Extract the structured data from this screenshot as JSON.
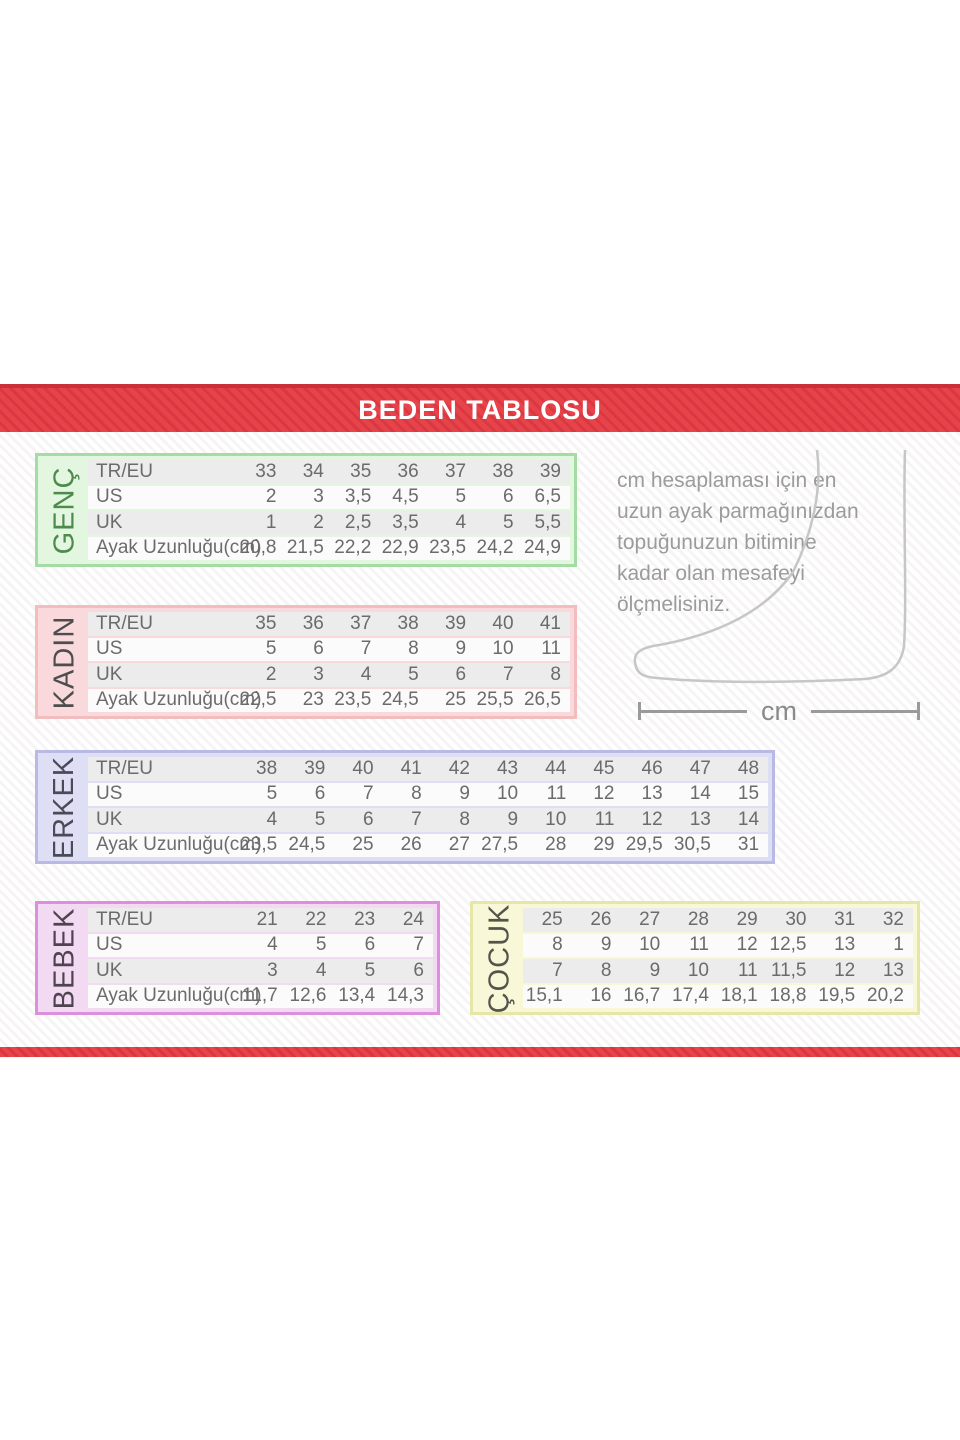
{
  "banner": {
    "title": "BEDEN TABLOSU"
  },
  "colors": {
    "banner_red": "#e8434b",
    "banner_dark_red": "#c93139"
  },
  "row_labels": [
    "TR/EU",
    "US",
    "UK",
    "Ayak Uzunluğu(cm)"
  ],
  "tables": [
    {
      "key": "genc",
      "label": "GENÇ",
      "show_row_labels": true,
      "colors": {
        "border": "#a5dba5",
        "fill": "#e3f6df",
        "label": "#4d8b4d"
      },
      "rows": [
        [
          "33",
          "34",
          "35",
          "36",
          "37",
          "38",
          "39"
        ],
        [
          "2",
          "3",
          "3,5",
          "4,5",
          "5",
          "6",
          "6,5"
        ],
        [
          "1",
          "2",
          "2,5",
          "3,5",
          "4",
          "5",
          "5,5"
        ],
        [
          "20,8",
          "21,5",
          "22,2",
          "22,9",
          "23,5",
          "24,2",
          "24,9"
        ]
      ]
    },
    {
      "key": "kadin",
      "label": "KADIN",
      "show_row_labels": true,
      "colors": {
        "border": "#f2bdbf",
        "fill": "#f9d9db",
        "label": "#4d4d4d"
      },
      "rows": [
        [
          "35",
          "36",
          "37",
          "38",
          "39",
          "40",
          "41"
        ],
        [
          "5",
          "6",
          "7",
          "8",
          "9",
          "10",
          "11"
        ],
        [
          "2",
          "3",
          "4",
          "5",
          "6",
          "7",
          "8"
        ],
        [
          "22,5",
          "23",
          "23,5",
          "24,5",
          "25",
          "25,5",
          "26,5"
        ]
      ]
    },
    {
      "key": "erkek",
      "label": "ERKEK",
      "show_row_labels": true,
      "colors": {
        "border": "#b9b9e6",
        "fill": "#dedef4",
        "label": "#4b4b57"
      },
      "rows": [
        [
          "38",
          "39",
          "40",
          "41",
          "42",
          "43",
          "44",
          "45",
          "46",
          "47",
          "48"
        ],
        [
          "5",
          "6",
          "7",
          "8",
          "9",
          "10",
          "11",
          "12",
          "13",
          "14",
          "15"
        ],
        [
          "4",
          "5",
          "6",
          "7",
          "8",
          "9",
          "10",
          "11",
          "12",
          "13",
          "14"
        ],
        [
          "23,5",
          "24,5",
          "25",
          "26",
          "27",
          "27,5",
          "28",
          "29",
          "29,5",
          "30,5",
          "31"
        ]
      ]
    },
    {
      "key": "bebek",
      "label": "BEBEK",
      "show_row_labels": true,
      "colors": {
        "border": "#dd8fdd",
        "fill": "#f3daf3",
        "label": "#4d444f"
      },
      "rows": [
        [
          "21",
          "22",
          "23",
          "24"
        ],
        [
          "4",
          "5",
          "6",
          "7"
        ],
        [
          "3",
          "4",
          "5",
          "6"
        ],
        [
          "11,7",
          "12,6",
          "13,4",
          "14,3"
        ]
      ]
    },
    {
      "key": "cocuk",
      "label": "ÇOCUK",
      "show_row_labels": false,
      "colors": {
        "border": "#e6e6a9",
        "fill": "#f8f8d8",
        "label": "#54544a"
      },
      "rows": [
        [
          "25",
          "26",
          "27",
          "28",
          "29",
          "30",
          "31",
          "32"
        ],
        [
          "8",
          "9",
          "10",
          "11",
          "12",
          "12,5",
          "13",
          "1"
        ],
        [
          "7",
          "8",
          "9",
          "10",
          "11",
          "11,5",
          "12",
          "13"
        ],
        [
          "15,1",
          "16",
          "16,7",
          "17,4",
          "18,1",
          "18,8",
          "19,5",
          "20,2"
        ]
      ]
    }
  ],
  "info": {
    "lines": [
      "cm hesaplaması için en",
      "uzun ayak parmağınızdan",
      "topuğunuzun bitimine",
      "kadar olan mesafeyi",
      "ölçmelisiniz."
    ],
    "cm_label": "cm"
  }
}
